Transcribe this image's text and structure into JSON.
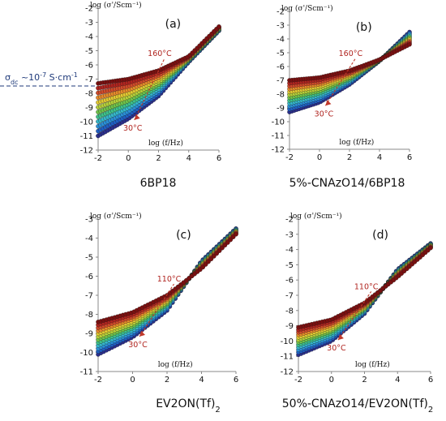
{
  "figure": {
    "annotation": {
      "text_main": "σ",
      "text_sub": "dc",
      "text_value": " ~10",
      "text_exp": "-7",
      "text_unit": " S·cm",
      "text_unit_exp": "-1",
      "color": "#1f3a7a"
    }
  },
  "chart_data": [
    {
      "type": "scatter",
      "panel_label": "(a)",
      "caption": "6BP18",
      "ylabel": "log (σ'/Scm⁻¹)",
      "xlabel": "log (f/Hz)",
      "xlim": [
        -2,
        6
      ],
      "ylim": [
        -12,
        -2
      ],
      "xticks": [
        -2,
        0,
        2,
        4,
        6
      ],
      "yticks": [
        -12,
        -11,
        -10,
        -9,
        -8,
        -7,
        -6,
        -5,
        -4,
        -3,
        -2
      ],
      "temperature_range": [
        "30°C",
        "160°C"
      ],
      "arrow_label_low": "30°C",
      "arrow_label_high": "160°C",
      "series": [
        {
          "label": "30°C",
          "x": [
            -2,
            0,
            2,
            4,
            6
          ],
          "y": [
            -11.0,
            -9.8,
            -8.2,
            -5.8,
            -3.6
          ]
        },
        {
          "label": "160°C",
          "x": [
            -2,
            0,
            2,
            4,
            6
          ],
          "y": [
            -7.3,
            -7.0,
            -6.4,
            -5.4,
            -3.3
          ]
        }
      ]
    },
    {
      "type": "scatter",
      "panel_label": "(b)",
      "caption": "5%-CNAzO14/6BP18",
      "ylabel": "log (σ'/Scm⁻¹)",
      "xlabel": "log (f/Hz)",
      "xlim": [
        -2,
        6
      ],
      "ylim": [
        -12,
        -2
      ],
      "xticks": [
        -2,
        0,
        2,
        4,
        6
      ],
      "yticks": [
        -12,
        -11,
        -10,
        -9,
        -8,
        -7,
        -6,
        -5,
        -4,
        -3,
        -2
      ],
      "temperature_range": [
        "30°C",
        "160°C"
      ],
      "arrow_label_low": "30°C",
      "arrow_label_high": "160°C",
      "series": [
        {
          "label": "30°C",
          "x": [
            -2,
            0,
            2,
            4,
            6
          ],
          "y": [
            -9.3,
            -8.6,
            -7.3,
            -5.6,
            -3.5
          ]
        },
        {
          "label": "160°C",
          "x": [
            -2,
            0,
            2,
            4,
            6
          ],
          "y": [
            -7.0,
            -6.8,
            -6.3,
            -5.5,
            -4.4
          ]
        }
      ]
    },
    {
      "type": "scatter",
      "panel_label": "(c)",
      "caption": "EV2ON(Tf)",
      "caption_sub": "2",
      "ylabel": "log (σ'/Scm⁻¹)",
      "xlabel": "log (f/Hz)",
      "xlim": [
        -2,
        6
      ],
      "ylim": [
        -11,
        -3
      ],
      "xticks": [
        -2,
        0,
        2,
        4,
        6
      ],
      "yticks": [
        -11,
        -10,
        -9,
        -8,
        -7,
        -6,
        -5,
        -4,
        -3
      ],
      "temperature_range": [
        "30°C",
        "110°C"
      ],
      "arrow_label_low": "30°C",
      "arrow_label_high": "110°C",
      "series": [
        {
          "label": "30°C",
          "x": [
            -2,
            0,
            2,
            4,
            6
          ],
          "y": [
            -10.1,
            -9.2,
            -7.8,
            -5.2,
            -3.5
          ]
        },
        {
          "label": "110°C",
          "x": [
            -2,
            0,
            2,
            4,
            6
          ],
          "y": [
            -8.4,
            -7.9,
            -7.0,
            -5.6,
            -3.8
          ]
        }
      ]
    },
    {
      "type": "scatter",
      "panel_label": "(d)",
      "caption": "50%-CNAzO14/EV2ON(Tf)",
      "caption_sub": "2",
      "ylabel": "log (σ'/Scm⁻¹)",
      "xlabel": "log (f/Hz)",
      "xlim": [
        -2,
        6
      ],
      "ylim": [
        -12,
        -2
      ],
      "xticks": [
        -2,
        0,
        2,
        4,
        6
      ],
      "yticks": [
        -12,
        -11,
        -10,
        -9,
        -8,
        -7,
        -6,
        -5,
        -4,
        -3,
        -2
      ],
      "temperature_range": [
        "30°C",
        "110°C"
      ],
      "arrow_label_low": "30°C",
      "arrow_label_high": "110°C",
      "series": [
        {
          "label": "30°C",
          "x": [
            -2,
            0,
            2,
            4,
            6
          ],
          "y": [
            -10.9,
            -10.0,
            -8.2,
            -5.3,
            -3.6
          ]
        },
        {
          "label": "110°C",
          "x": [
            -2,
            0,
            2,
            4,
            6
          ],
          "y": [
            -9.1,
            -8.6,
            -7.5,
            -5.8,
            -3.9
          ]
        }
      ]
    }
  ]
}
